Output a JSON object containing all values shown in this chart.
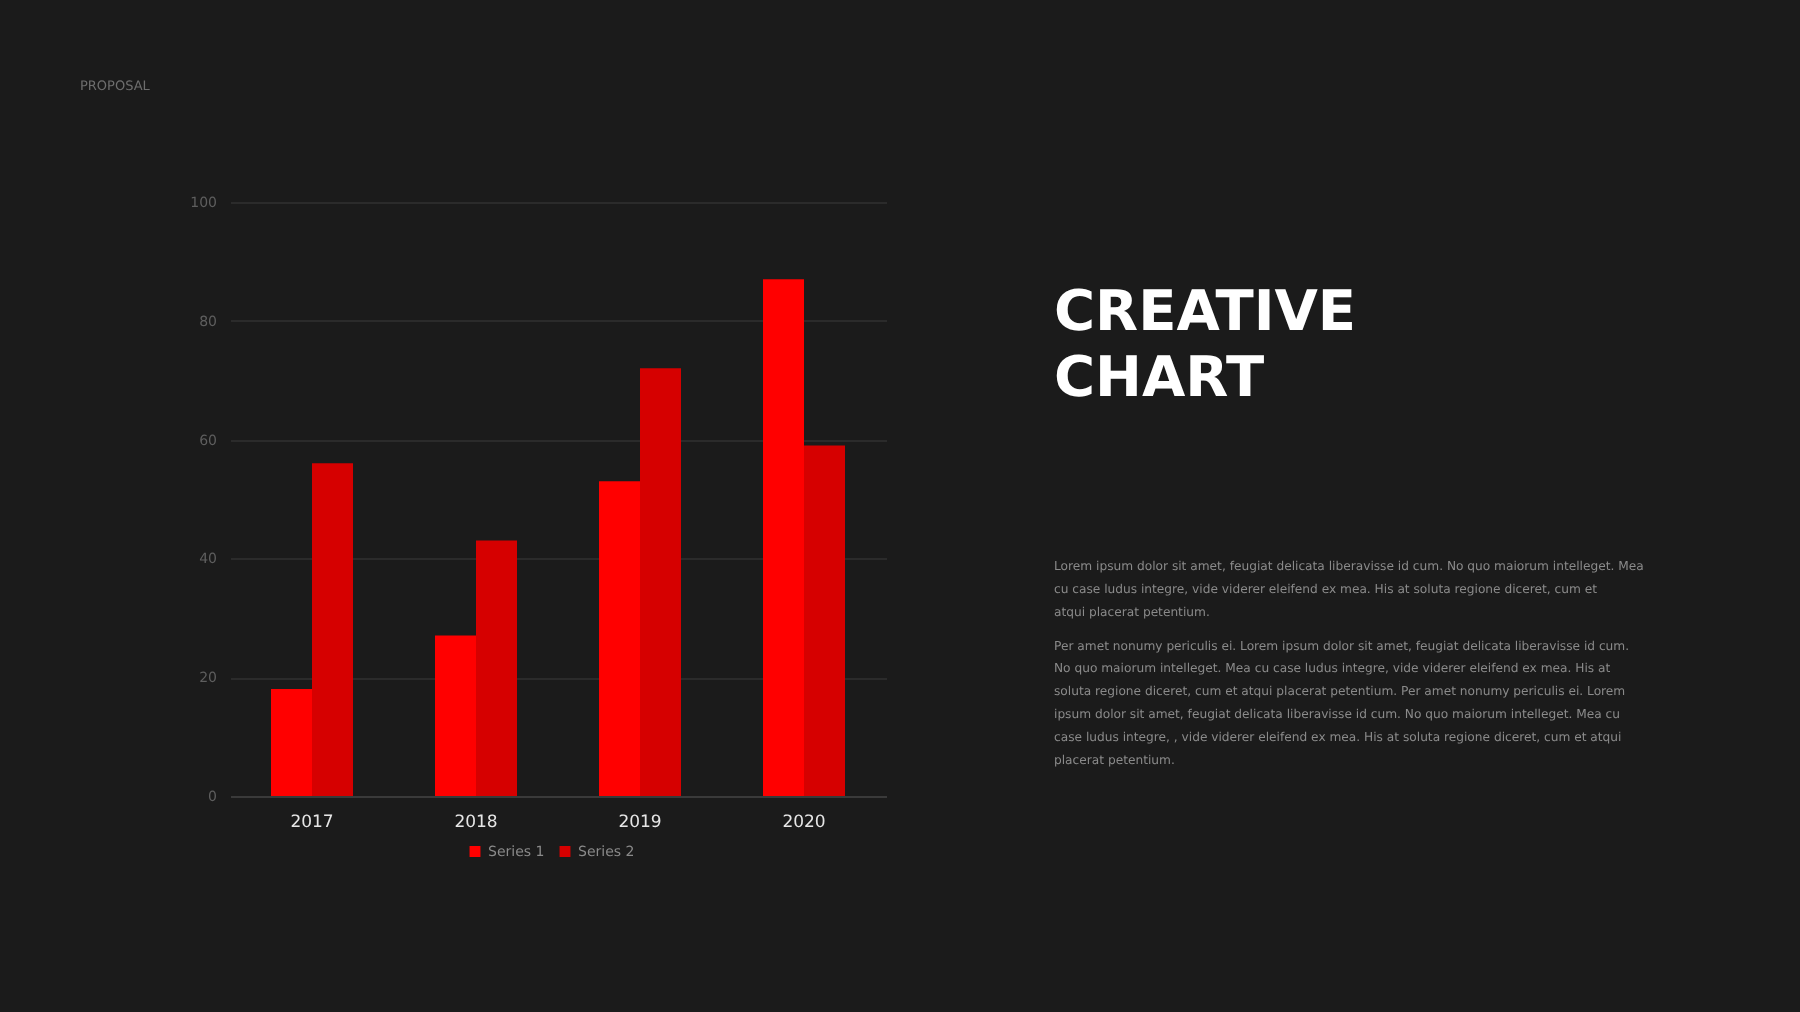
{
  "chart_data": {
    "type": "bar",
    "title": "CREATIVE CHART",
    "categories": [
      "2017",
      "2018",
      "2019",
      "2020"
    ],
    "series": [
      {
        "name": "Series 1",
        "color": "#ff0000",
        "values": [
          18,
          27,
          53,
          87
        ]
      },
      {
        "name": "Series 2",
        "color": "#d60000",
        "values": [
          56,
          43,
          72,
          59
        ]
      }
    ],
    "ylim": [
      0,
      100
    ],
    "yticks": [
      0,
      20,
      40,
      60,
      80,
      100
    ],
    "grid": "y",
    "legend": "bottom",
    "annotations": [
      "PROPOSAL",
      "Lorem ipsum dolor sit amet, feugiat delicata liberavisse id cum. No quo maiorum intelleget. Mea cu case ludus integre, vide viderer eleifend ex mea. His at soluta regione diceret, cum et atqui placerat petentium.",
      "Per amet nonumy periculis ei. Lorem ipsum dolor sit amet, feugiat delicata liberavisse id cum. No quo maiorum intelleget. Mea cu case ludus integre, vide viderer eleifend ex mea. His at soluta regione diceret, cum et atqui placerat petentium. Per amet nonumy periculis ei. Lorem ipsum dolor sit amet, feugiat delicata liberavisse id cum. No quo maiorum intelleget. Mea cu case ludus integre, , vide viderer eleifend ex mea. His at soluta regione diceret, cum et atqui placerat petentium."
    ]
  }
}
